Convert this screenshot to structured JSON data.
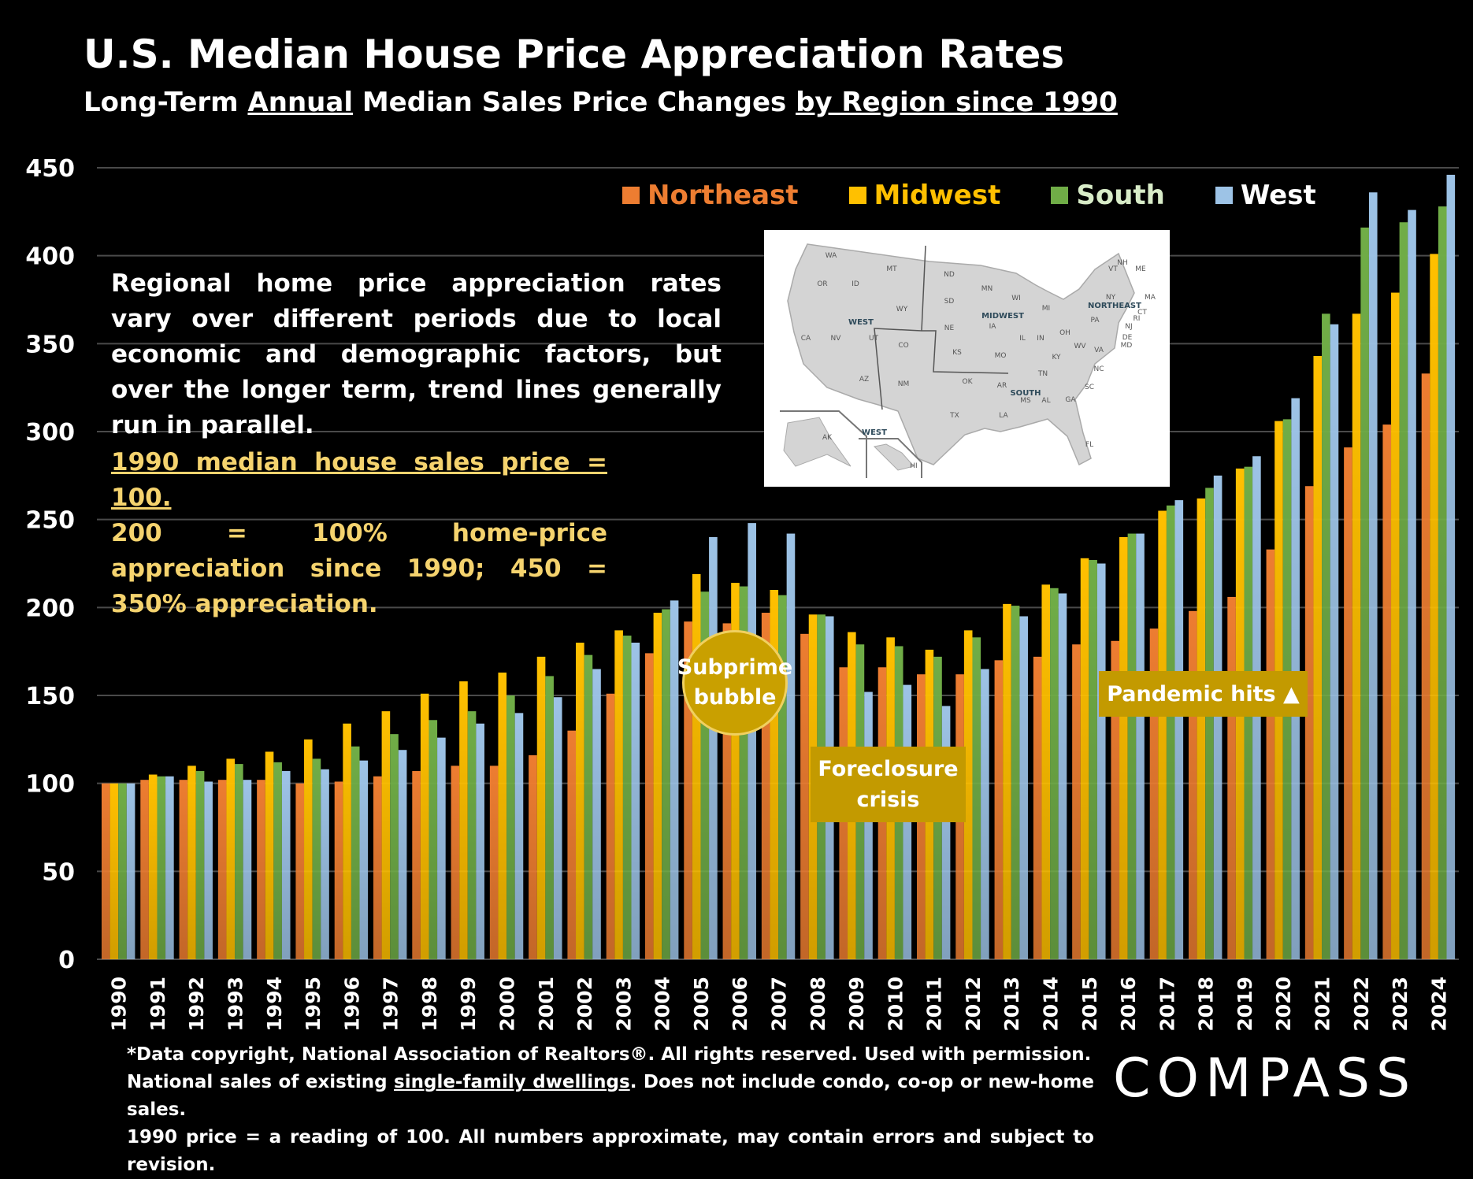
{
  "header": {
    "title": "U.S. Median House Price Appreciation Rates",
    "subtitle_parts": [
      "Long-Term ",
      "Annual",
      " Median Sales Price Changes ",
      "by Region since 1990"
    ]
  },
  "notes": {
    "main": "Regional home price appreciation rates vary over different periods due to local economic and demographic factors, but over the longer term, trend lines generally run in parallel.",
    "index_line1": "1990 median house sales price = 100.",
    "index_line2": "200 = 100% home-price appreciation since 1990; 450 = 350% appreciation."
  },
  "annotations": {
    "subprime": "Subprime bubble",
    "foreclosure": "Foreclosure crisis",
    "pandemic": "Pandemic hits ▲"
  },
  "map": {
    "regions": [
      "WEST",
      "MIDWEST",
      "NORTHEAST",
      "SOUTH",
      "WEST"
    ],
    "states": [
      "WA",
      "OR",
      "ID",
      "MT",
      "WY",
      "CA",
      "NV",
      "UT",
      "CO",
      "AZ",
      "NM",
      "ND",
      "SD",
      "NE",
      "KS",
      "MN",
      "IA",
      "MO",
      "WI",
      "IL",
      "IN",
      "MI",
      "OH",
      "KY",
      "TN",
      "OK",
      "TX",
      "AR",
      "LA",
      "MS",
      "AL",
      "GA",
      "FL",
      "SC",
      "NC",
      "VA",
      "WV",
      "PA",
      "NY",
      "VT",
      "NH",
      "ME",
      "MA",
      "CT",
      "RI",
      "NJ",
      "DE",
      "MD",
      "AK",
      "HI"
    ]
  },
  "footnote": {
    "line1": "*Data copyright, National Association of Realtors®. All rights reserved. Used with permission.",
    "line2_pre": "National sales of existing ",
    "line2_ul": "single-family dwellings",
    "line2_post": ". Does not include condo, co-op or new-home sales.",
    "line3": "1990 price = a reading of 100. All numbers approximate, may contain errors and subject to revision."
  },
  "logo": "COMPASS",
  "chart_data": {
    "type": "bar",
    "title": "U.S. Median House Price Appreciation Rates",
    "ylim": [
      0,
      450
    ],
    "yticks": [
      0,
      50,
      100,
      150,
      200,
      250,
      300,
      350,
      400,
      450
    ],
    "grid": true,
    "legend_position": "top-right",
    "categories": [
      "1990",
      "1991",
      "1992",
      "1993",
      "1994",
      "1995",
      "1996",
      "1997",
      "1998",
      "1999",
      "2000",
      "2001",
      "2002",
      "2003",
      "2004",
      "2005",
      "2006",
      "2007",
      "2008",
      "2009",
      "2010",
      "2011",
      "2012",
      "2013",
      "2014",
      "2015",
      "2016",
      "2017",
      "2018",
      "2019",
      "2020",
      "2021",
      "2022",
      "2023",
      "2024"
    ],
    "series": [
      {
        "name": "Northeast",
        "color": "#ed7d31",
        "values": [
          100,
          102,
          102,
          102,
          102,
          100,
          101,
          104,
          107,
          110,
          110,
          116,
          130,
          151,
          174,
          192,
          191,
          197,
          185,
          166,
          166,
          162,
          162,
          170,
          172,
          179,
          181,
          188,
          198,
          206,
          233,
          269,
          291,
          304,
          333
        ]
      },
      {
        "name": "Midwest",
        "color": "#ffc000",
        "values": [
          100,
          105,
          110,
          114,
          118,
          125,
          134,
          141,
          151,
          158,
          163,
          172,
          180,
          187,
          197,
          219,
          214,
          210,
          196,
          186,
          183,
          176,
          187,
          202,
          213,
          228,
          240,
          255,
          262,
          279,
          306,
          343,
          367,
          379,
          401
        ]
      },
      {
        "name": "South",
        "color": "#70ad47",
        "values": [
          100,
          104,
          107,
          111,
          112,
          114,
          121,
          128,
          136,
          141,
          150,
          161,
          173,
          184,
          199,
          209,
          212,
          207,
          196,
          179,
          178,
          172,
          183,
          201,
          211,
          227,
          242,
          258,
          268,
          280,
          307,
          367,
          416,
          419,
          428
        ]
      },
      {
        "name": "West",
        "color": "#9dc3e6",
        "values": [
          100,
          104,
          101,
          102,
          107,
          108,
          113,
          119,
          126,
          134,
          140,
          149,
          165,
          180,
          204,
          240,
          248,
          242,
          195,
          152,
          156,
          144,
          165,
          195,
          208,
          225,
          242,
          261,
          275,
          286,
          319,
          361,
          436,
          426,
          446
        ]
      }
    ]
  }
}
